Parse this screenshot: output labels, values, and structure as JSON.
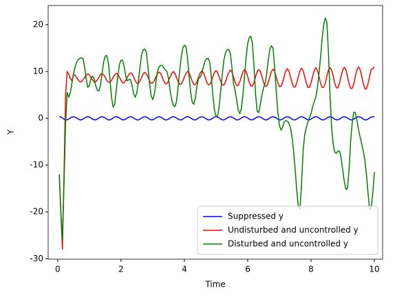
{
  "chart_data": {
    "type": "line",
    "xlabel": "Time",
    "ylabel": "Y",
    "x": [
      0.05,
      0.1,
      0.15,
      0.2,
      0.25,
      0.3,
      0.35,
      0.4,
      0.45,
      0.5,
      0.55,
      0.6,
      0.65,
      0.7,
      0.75,
      0.8,
      0.85,
      0.9,
      0.95,
      1.0,
      1.05,
      1.1,
      1.15,
      1.2,
      1.25,
      1.3,
      1.35,
      1.4,
      1.45,
      1.5,
      1.55,
      1.6,
      1.65,
      1.7,
      1.75,
      1.8,
      1.85,
      1.9,
      1.95,
      2.0,
      2.05,
      2.1,
      2.15,
      2.2,
      2.25,
      2.3,
      2.35,
      2.4,
      2.45,
      2.5,
      2.55,
      2.6,
      2.65,
      2.7,
      2.75,
      2.8,
      2.85,
      2.9,
      2.95,
      3.0,
      3.05,
      3.1,
      3.15,
      3.2,
      3.25,
      3.3,
      3.35,
      3.4,
      3.45,
      3.5,
      3.55,
      3.6,
      3.65,
      3.7,
      3.75,
      3.8,
      3.85,
      3.9,
      3.95,
      4.0,
      4.05,
      4.1,
      4.15,
      4.2,
      4.25,
      4.3,
      4.35,
      4.4,
      4.45,
      4.5,
      4.55,
      4.6,
      4.65,
      4.7,
      4.75,
      4.8,
      4.85,
      4.9,
      4.95,
      5.0,
      5.05,
      5.1,
      5.15,
      5.2,
      5.25,
      5.3,
      5.35,
      5.4,
      5.45,
      5.5,
      5.55,
      5.6,
      5.65,
      5.7,
      5.75,
      5.8,
      5.85,
      5.9,
      5.95,
      6.0,
      6.05,
      6.1,
      6.15,
      6.2,
      6.25,
      6.3,
      6.35,
      6.4,
      6.45,
      6.5,
      6.55,
      6.6,
      6.65,
      6.7,
      6.75,
      6.8,
      6.85,
      6.9,
      6.95,
      7.0,
      7.05,
      7.1,
      7.15,
      7.2,
      7.25,
      7.3,
      7.35,
      7.4,
      7.45,
      7.5,
      7.55,
      7.6,
      7.65,
      7.7,
      7.75,
      7.8,
      7.85,
      7.9,
      7.95,
      8.0,
      8.05,
      8.1,
      8.15,
      8.2,
      8.25,
      8.3,
      8.35,
      8.4,
      8.45,
      8.5,
      8.55,
      8.6,
      8.65,
      8.7,
      8.75,
      8.8,
      8.85,
      8.9,
      8.95,
      9.0,
      9.05,
      9.1,
      9.15,
      9.2,
      9.25,
      9.3,
      9.35,
      9.4,
      9.45,
      9.5,
      9.55,
      9.6,
      9.65,
      9.7,
      9.75,
      9.8,
      9.85,
      9.9,
      9.95,
      10.0
    ],
    "series": [
      {
        "name": "Suppressed y",
        "color": "#0000ff",
        "values": [
          0.35,
          0.27,
          0.06,
          -0.17,
          -0.33,
          -0.33,
          -0.17,
          0.06,
          0.27,
          0.35,
          0.27,
          0.06,
          -0.17,
          -0.33,
          -0.33,
          -0.17,
          0.06,
          0.27,
          0.35,
          0.27,
          0.06,
          -0.17,
          -0.33,
          -0.33,
          -0.17,
          0.06,
          0.27,
          0.35,
          0.27,
          0.06,
          -0.17,
          -0.33,
          -0.33,
          -0.17,
          0.06,
          0.27,
          0.35,
          0.27,
          0.06,
          -0.17,
          -0.33,
          -0.33,
          -0.17,
          0.06,
          0.27,
          0.35,
          0.27,
          0.06,
          -0.17,
          -0.33,
          -0.33,
          -0.17,
          0.06,
          0.27,
          0.35,
          0.27,
          0.06,
          -0.17,
          -0.33,
          -0.33,
          -0.17,
          0.06,
          0.27,
          0.35,
          0.27,
          0.06,
          -0.17,
          -0.33,
          -0.33,
          -0.17,
          0.06,
          0.27,
          0.35,
          0.27,
          0.06,
          -0.17,
          -0.33,
          -0.33,
          -0.17,
          0.06,
          0.27,
          0.35,
          0.27,
          0.06,
          -0.17,
          -0.33,
          -0.33,
          -0.17,
          0.06,
          0.27,
          0.35,
          0.27,
          0.06,
          -0.17,
          -0.33,
          -0.33,
          -0.17,
          0.06,
          0.27,
          0.35,
          0.27,
          0.06,
          -0.17,
          -0.33,
          -0.33,
          -0.17,
          0.06,
          0.27,
          0.35,
          0.27,
          0.06,
          -0.17,
          -0.33,
          -0.33,
          -0.17,
          0.06,
          0.27,
          0.35,
          0.27,
          0.06,
          -0.17,
          -0.33,
          -0.33,
          -0.17,
          0.06,
          0.27,
          0.35,
          0.27,
          0.06,
          -0.17,
          -0.33,
          -0.33,
          -0.17,
          0.06,
          0.27,
          0.35,
          0.27,
          0.06,
          -0.17,
          -0.33,
          -0.33,
          -0.17,
          0.06,
          0.27,
          0.35,
          0.27,
          0.06,
          -0.17,
          -0.33,
          -0.33,
          -0.17,
          0.06,
          0.27,
          0.35,
          0.27,
          0.06,
          -0.17,
          -0.33,
          -0.33,
          -0.17,
          0.06,
          0.27,
          0.35,
          0.27,
          0.06,
          -0.17,
          -0.33,
          -0.33,
          -0.17,
          0.06,
          0.27,
          0.35,
          0.27,
          0.06,
          -0.17,
          -0.33,
          -0.33,
          -0.17,
          0.06,
          0.27,
          0.35,
          0.27,
          0.06,
          -0.17,
          -0.33,
          -0.33,
          -0.17,
          0.06,
          0.27,
          0.35,
          0.27,
          0.06,
          -0.17,
          -0.33,
          -0.33,
          -0.17,
          0.06,
          0.27,
          0.35,
          0.27
        ]
      },
      {
        "name": "Undisturbed and uncontrolled y",
        "color": "#ff0000",
        "values": [
          -12,
          -20,
          -28,
          -12,
          5,
          10,
          9.5,
          8.5,
          8,
          9.4,
          9.2,
          8.7,
          8.2,
          7.8,
          7.8,
          8.2,
          8.7,
          9.2,
          9.5,
          9.3,
          8.7,
          8.2,
          7.8,
          7.8,
          8.2,
          8.7,
          9.3,
          9.6,
          9.3,
          8.8,
          8.1,
          7.7,
          7.7,
          8.1,
          8.8,
          9.3,
          9.6,
          9.4,
          8.8,
          8.1,
          7.6,
          7.6,
          8.1,
          8.8,
          9.4,
          9.7,
          9.5,
          8.8,
          8.0,
          7.5,
          7.5,
          8.0,
          8.8,
          9.5,
          9.8,
          9.5,
          8.8,
          8.0,
          7.5,
          7.5,
          8.0,
          8.8,
          9.5,
          9.9,
          9.6,
          8.8,
          8.0,
          7.4,
          7.4,
          8.0,
          8.8,
          9.6,
          10.0,
          9.6,
          8.8,
          7.9,
          7.3,
          7.3,
          7.9,
          8.8,
          9.6,
          10.0,
          9.7,
          8.8,
          7.9,
          7.2,
          7.2,
          7.9,
          8.8,
          9.7,
          10.1,
          9.8,
          8.9,
          7.8,
          7.2,
          7.2,
          7.8,
          8.9,
          9.8,
          10.2,
          9.8,
          8.9,
          7.8,
          7.1,
          7.1,
          7.8,
          8.9,
          9.8,
          10.3,
          9.9,
          8.9,
          7.8,
          7.0,
          7.0,
          7.8,
          8.9,
          9.9,
          10.4,
          10.0,
          8.9,
          7.7,
          6.9,
          6.9,
          7.7,
          8.9,
          10.0,
          10.4,
          10.0,
          8.9,
          7.7,
          6.9,
          6.9,
          7.7,
          8.9,
          10.0,
          10.5,
          10.1,
          8.9,
          7.6,
          6.8,
          6.8,
          7.6,
          8.9,
          10.1,
          10.6,
          10.1,
          8.9,
          7.6,
          6.7,
          6.7,
          7.6,
          8.9,
          10.1,
          10.7,
          10.2,
          8.9,
          7.6,
          6.6,
          6.6,
          7.6,
          8.9,
          10.2,
          10.8,
          10.3,
          9.0,
          7.5,
          6.6,
          6.6,
          7.5,
          9.0,
          10.3,
          10.8,
          10.3,
          9.0,
          7.5,
          6.5,
          6.5,
          7.5,
          9.0,
          10.3,
          10.9,
          10.4,
          9.0,
          7.4,
          6.4,
          6.4,
          7.4,
          9.0,
          10.4,
          11.0,
          10.4,
          9.0,
          7.4,
          6.3,
          6.3,
          7.4,
          9.0,
          10.4,
          10.6,
          11.0
        ]
      },
      {
        "name": "Disturbed and uncontrolled y",
        "color": "#008000",
        "values": [
          -12,
          -20,
          -26,
          -14,
          -1,
          5.5,
          4.5,
          5.5,
          7.5,
          9.5,
          11,
          12,
          12.5,
          12.8,
          12.9,
          12.8,
          11,
          8.5,
          6.6,
          7,
          8.5,
          9,
          8.5,
          7,
          6,
          5.8,
          7,
          9.5,
          12,
          13.3,
          13.4,
          12,
          8.5,
          4.5,
          2.4,
          3,
          6,
          9,
          11.5,
          12.4,
          12.4,
          11,
          9,
          8,
          8.3,
          8.3,
          7,
          5.2,
          4.5,
          5.5,
          8,
          11,
          13.5,
          14.6,
          14.8,
          14.2,
          11,
          7.5,
          4.8,
          4,
          5,
          7.5,
          10,
          11,
          11.3,
          11.3,
          10.8,
          10.3,
          10,
          8.5,
          6,
          4,
          2.8,
          2.5,
          3.5,
          6.5,
          10,
          13,
          15,
          15.6,
          15.4,
          13,
          9,
          5.5,
          3.4,
          3,
          4.5,
          7,
          8.5,
          8.8,
          9.5,
          11,
          12.2,
          12.7,
          12.8,
          12,
          9,
          5,
          1.8,
          0.4,
          0.5,
          2.5,
          6,
          9.5,
          12.5,
          14,
          14.6,
          14.7,
          14,
          11,
          7.5,
          6,
          4,
          1.8,
          1,
          2,
          5,
          9,
          13,
          16,
          17.3,
          17.5,
          16,
          11,
          5,
          1.5,
          1.2,
          3,
          5,
          6.5,
          7.5,
          9.5,
          12.5,
          14.8,
          15.5,
          15,
          11,
          6,
          1.5,
          -1.5,
          -2.5,
          -2,
          -0.8,
          -0.5,
          -0.6,
          -1,
          -2,
          -4,
          -7,
          -11,
          -15.5,
          -19,
          -19.5,
          -14,
          -7,
          -3.5,
          -2,
          -0.8,
          0,
          1,
          2.5,
          3.5,
          4.5,
          6.5,
          9.5,
          13,
          17,
          20,
          21.4,
          20.5,
          14,
          5,
          -2,
          -5.5,
          -7.3,
          -7.5,
          -7,
          -7,
          -8.5,
          -11,
          -13.5,
          -15.2,
          -15,
          -11,
          -5,
          -1,
          1.3,
          1.2,
          -0.5,
          -2.5,
          -4,
          -5.5,
          -7,
          -9,
          -12,
          -16,
          -19.5,
          -19,
          -16,
          -11.5
        ]
      }
    ],
    "xlim": [
      -0.3,
      10.26
    ],
    "xticks": [
      0,
      2,
      4,
      6,
      8,
      10
    ],
    "ylim": [
      -30.1,
      24.1
    ],
    "yticks": [
      -30,
      -20,
      -10,
      0,
      10,
      20
    ],
    "grid": false,
    "legend": "lower right"
  }
}
